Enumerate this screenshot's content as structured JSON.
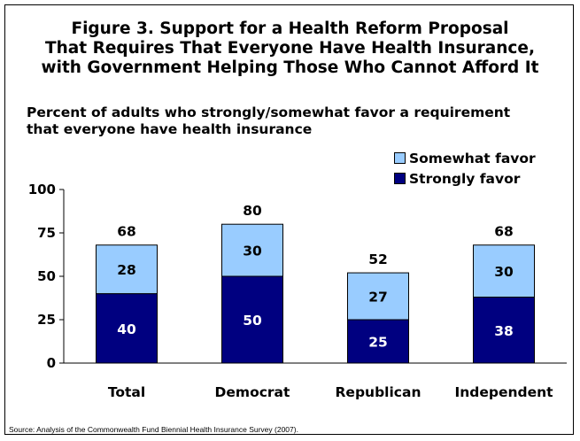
{
  "title_lines": [
    "Figure 3. Support for a Health Reform Proposal",
    "That Requires That Everyone Have Health Insurance,",
    "with Government Helping Those Who Cannot Afford It"
  ],
  "subtitle_lines": [
    "Percent of adults who strongly/somewhat favor a requirement",
    "that everyone have health insurance"
  ],
  "source": "Source: Analysis of the Commonwealth Fund Biennial Health Insurance Survey (2007).",
  "colors": {
    "strongly": "#000080",
    "somewhat": "#99CCFF",
    "border": "#000000",
    "inner_label": "#000000",
    "inner_label_dark": "#ffffff"
  },
  "chart_data": {
    "type": "bar",
    "stacked": true,
    "categories": [
      "Total",
      "Democrat",
      "Republican",
      "Independent"
    ],
    "series": [
      {
        "name": "Strongly favor",
        "values": [
          40,
          50,
          25,
          38
        ]
      },
      {
        "name": "Somewhat favor",
        "values": [
          28,
          30,
          27,
          30
        ]
      }
    ],
    "totals": [
      68,
      80,
      52,
      68
    ],
    "ylim": [
      0,
      100
    ],
    "yticks": [
      0,
      25,
      50,
      75,
      100
    ],
    "legend": [
      "Somewhat favor",
      "Strongly favor"
    ],
    "legend_position": "top-right",
    "grid": false
  }
}
